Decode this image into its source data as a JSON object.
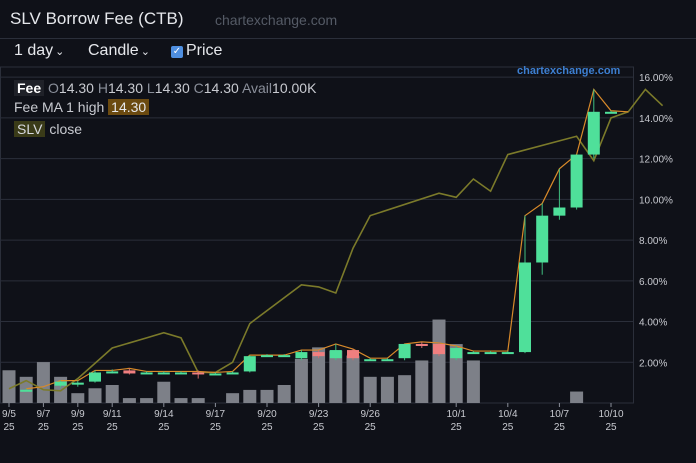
{
  "title": "SLV Borrow Fee (CTB)",
  "site": "chartexchange.com",
  "toolbar": {
    "period": "1 day",
    "chart_type": "Candle",
    "price_label": "Price",
    "price_checked": true
  },
  "watermark": "chartexchange.com",
  "legend": {
    "fee_badge": "Fee",
    "o_key": "O",
    "o_val": "14.30",
    "h_key": "H",
    "h_val": "14.30",
    "l_key": "L",
    "l_val": "14.30",
    "c_key": "C",
    "c_val": "14.30",
    "avail_key": "Avail",
    "avail_val": "10.00K",
    "ma_label": "Fee MA 1 high",
    "ma_val": "14.30",
    "slv_badge": "SLV",
    "slv_label": "close"
  },
  "colors": {
    "background": "#0f1118",
    "up": "#4fe09a",
    "down": "#f07f7f",
    "volume": "#7d8088",
    "price_line": "#7b7a2a",
    "ma_line": "#d98a2a",
    "grid": "#2b2f3a"
  },
  "chart_data": {
    "type": "candlestick",
    "ylim": [
      0,
      16.5
    ],
    "y_ticks": [
      "16.00%",
      "14.00%",
      "12.00%",
      "10.00%",
      "8.00%",
      "6.00%",
      "4.00%",
      "2.00%"
    ],
    "y_tick_values": [
      16,
      14,
      12,
      10,
      8,
      6,
      4,
      2
    ],
    "x_ticks": [
      {
        "index": 0,
        "top": "9/5",
        "bottom": "25"
      },
      {
        "index": 2,
        "top": "9/7",
        "bottom": "25"
      },
      {
        "index": 4,
        "top": "9/9",
        "bottom": "25"
      },
      {
        "index": 6,
        "top": "9/11",
        "bottom": "25"
      },
      {
        "index": 9,
        "top": "9/14",
        "bottom": "25"
      },
      {
        "index": 12,
        "top": "9/17",
        "bottom": "25"
      },
      {
        "index": 15,
        "top": "9/20",
        "bottom": "25"
      },
      {
        "index": 18,
        "top": "9/23",
        "bottom": "25"
      },
      {
        "index": 21,
        "top": "9/26",
        "bottom": "25"
      },
      {
        "index": 26,
        "top": "10/1",
        "bottom": "25"
      },
      {
        "index": 29,
        "top": "10/4",
        "bottom": "25"
      },
      {
        "index": 32,
        "top": "10/7",
        "bottom": "25"
      },
      {
        "index": 35,
        "top": "10/10",
        "bottom": "25"
      }
    ],
    "candles": [
      {
        "i": 1,
        "o": 0.65,
        "h": 0.7,
        "l": 0.6,
        "c": 0.65
      },
      {
        "i": 3,
        "o": 0.85,
        "h": 1.1,
        "l": 0.75,
        "c": 1.05
      },
      {
        "i": 4,
        "o": 0.9,
        "h": 1.1,
        "l": 0.8,
        "c": 1.0
      },
      {
        "i": 5,
        "o": 1.05,
        "h": 1.6,
        "l": 1.0,
        "c": 1.5
      },
      {
        "i": 6,
        "o": 1.5,
        "h": 1.65,
        "l": 1.45,
        "c": 1.55
      },
      {
        "i": 7,
        "o": 1.6,
        "h": 1.7,
        "l": 1.4,
        "c": 1.45
      },
      {
        "i": 8,
        "o": 1.5,
        "h": 1.55,
        "l": 1.45,
        "c": 1.5
      },
      {
        "i": 9,
        "o": 1.5,
        "h": 1.55,
        "l": 1.45,
        "c": 1.5
      },
      {
        "i": 10,
        "o": 1.5,
        "h": 1.55,
        "l": 1.45,
        "c": 1.5
      },
      {
        "i": 11,
        "o": 1.5,
        "h": 1.6,
        "l": 1.2,
        "c": 1.45
      },
      {
        "i": 12,
        "o": 1.45,
        "h": 1.5,
        "l": 1.4,
        "c": 1.45
      },
      {
        "i": 13,
        "o": 1.5,
        "h": 1.55,
        "l": 1.45,
        "c": 1.5
      },
      {
        "i": 14,
        "o": 1.55,
        "h": 2.35,
        "l": 1.5,
        "c": 2.3
      },
      {
        "i": 15,
        "o": 2.35,
        "h": 2.4,
        "l": 2.3,
        "c": 2.35
      },
      {
        "i": 16,
        "o": 2.35,
        "h": 2.4,
        "l": 2.3,
        "c": 2.35
      },
      {
        "i": 17,
        "o": 2.2,
        "h": 2.6,
        "l": 2.1,
        "c": 2.5
      },
      {
        "i": 18,
        "o": 2.5,
        "h": 2.6,
        "l": 2.2,
        "c": 2.3
      },
      {
        "i": 19,
        "o": 2.2,
        "h": 2.9,
        "l": 2.1,
        "c": 2.6
      },
      {
        "i": 20,
        "o": 2.6,
        "h": 2.65,
        "l": 2.1,
        "c": 2.2
      },
      {
        "i": 21,
        "o": 2.15,
        "h": 2.2,
        "l": 2.1,
        "c": 2.15
      },
      {
        "i": 22,
        "o": 2.15,
        "h": 2.2,
        "l": 2.1,
        "c": 2.15
      },
      {
        "i": 23,
        "o": 2.2,
        "h": 2.9,
        "l": 2.1,
        "c": 2.9
      },
      {
        "i": 24,
        "o": 2.9,
        "h": 3.0,
        "l": 2.7,
        "c": 2.8
      },
      {
        "i": 25,
        "o": 2.9,
        "h": 2.95,
        "l": 2.3,
        "c": 2.4
      },
      {
        "i": 26,
        "o": 2.2,
        "h": 2.8,
        "l": 2.1,
        "c": 2.7
      },
      {
        "i": 27,
        "o": 2.5,
        "h": 2.55,
        "l": 2.45,
        "c": 2.5
      },
      {
        "i": 28,
        "o": 2.5,
        "h": 2.55,
        "l": 2.45,
        "c": 2.5
      },
      {
        "i": 29,
        "o": 2.5,
        "h": 2.55,
        "l": 2.45,
        "c": 2.5
      },
      {
        "i": 30,
        "o": 2.5,
        "h": 9.2,
        "l": 2.45,
        "c": 6.9
      },
      {
        "i": 31,
        "o": 6.9,
        "h": 9.8,
        "l": 6.3,
        "c": 9.2
      },
      {
        "i": 32,
        "o": 9.2,
        "h": 11.5,
        "l": 9.0,
        "c": 9.6
      },
      {
        "i": 33,
        "o": 9.6,
        "h": 12.2,
        "l": 9.5,
        "c": 12.2
      },
      {
        "i": 34,
        "o": 12.2,
        "h": 15.4,
        "l": 12.0,
        "c": 14.3
      },
      {
        "i": 35,
        "o": 14.3,
        "h": 14.35,
        "l": 14.25,
        "c": 14.3
      }
    ],
    "volume": [
      {
        "i": 0,
        "v": 0.2
      },
      {
        "i": 1,
        "v": 0.16
      },
      {
        "i": 2,
        "v": 0.25
      },
      {
        "i": 3,
        "v": 0.16
      },
      {
        "i": 4,
        "v": 0.06
      },
      {
        "i": 5,
        "v": 0.09
      },
      {
        "i": 6,
        "v": 0.11
      },
      {
        "i": 7,
        "v": 0.03
      },
      {
        "i": 8,
        "v": 0.03
      },
      {
        "i": 9,
        "v": 0.13
      },
      {
        "i": 10,
        "v": 0.03
      },
      {
        "i": 11,
        "v": 0.03
      },
      {
        "i": 13,
        "v": 0.06
      },
      {
        "i": 14,
        "v": 0.08
      },
      {
        "i": 15,
        "v": 0.08
      },
      {
        "i": 16,
        "v": 0.11
      },
      {
        "i": 17,
        "v": 0.27
      },
      {
        "i": 18,
        "v": 0.34
      },
      {
        "i": 19,
        "v": 0.32
      },
      {
        "i": 20,
        "v": 0.29
      },
      {
        "i": 21,
        "v": 0.16
      },
      {
        "i": 22,
        "v": 0.16
      },
      {
        "i": 23,
        "v": 0.17
      },
      {
        "i": 24,
        "v": 0.26
      },
      {
        "i": 25,
        "v": 0.51
      },
      {
        "i": 26,
        "v": 0.36
      },
      {
        "i": 27,
        "v": 0.26
      },
      {
        "i": 33,
        "v": 0.07
      }
    ],
    "price_line": [
      {
        "i": 0,
        "v": 0.7
      },
      {
        "i": 1,
        "v": 1.1
      },
      {
        "i": 2,
        "v": 0.65
      },
      {
        "i": 3,
        "v": 0.6
      },
      {
        "i": 4,
        "v": 1.2
      },
      {
        "i": 6,
        "v": 2.7
      },
      {
        "i": 8,
        "v": 3.2
      },
      {
        "i": 9,
        "v": 3.45
      },
      {
        "i": 10,
        "v": 3.2
      },
      {
        "i": 11,
        "v": 1.5
      },
      {
        "i": 12,
        "v": 1.5
      },
      {
        "i": 13,
        "v": 2.0
      },
      {
        "i": 14,
        "v": 3.9
      },
      {
        "i": 17,
        "v": 5.8
      },
      {
        "i": 18,
        "v": 5.7
      },
      {
        "i": 19,
        "v": 5.4
      },
      {
        "i": 20,
        "v": 7.6
      },
      {
        "i": 21,
        "v": 9.2
      },
      {
        "i": 25,
        "v": 10.3
      },
      {
        "i": 26,
        "v": 10.1
      },
      {
        "i": 27,
        "v": 11.0
      },
      {
        "i": 28,
        "v": 10.4
      },
      {
        "i": 29,
        "v": 12.2
      },
      {
        "i": 33,
        "v": 13.1
      },
      {
        "i": 34,
        "v": 11.9
      },
      {
        "i": 35,
        "v": 14.0
      },
      {
        "i": 36,
        "v": 14.3
      },
      {
        "i": 37,
        "v": 15.4
      },
      {
        "i": 38,
        "v": 14.6
      }
    ],
    "ma_line": [
      {
        "i": 1,
        "v": 0.7
      },
      {
        "i": 2,
        "v": 0.8
      },
      {
        "i": 3,
        "v": 1.1
      },
      {
        "i": 4,
        "v": 1.1
      },
      {
        "i": 5,
        "v": 1.6
      },
      {
        "i": 6,
        "v": 1.6
      },
      {
        "i": 7,
        "v": 1.7
      },
      {
        "i": 8,
        "v": 1.55
      },
      {
        "i": 11,
        "v": 1.55
      },
      {
        "i": 12,
        "v": 1.5
      },
      {
        "i": 13,
        "v": 1.55
      },
      {
        "i": 14,
        "v": 2.35
      },
      {
        "i": 16,
        "v": 2.35
      },
      {
        "i": 17,
        "v": 2.6
      },
      {
        "i": 18,
        "v": 2.6
      },
      {
        "i": 19,
        "v": 2.9
      },
      {
        "i": 20,
        "v": 2.65
      },
      {
        "i": 21,
        "v": 2.2
      },
      {
        "i": 22,
        "v": 2.2
      },
      {
        "i": 23,
        "v": 2.9
      },
      {
        "i": 24,
        "v": 3.0
      },
      {
        "i": 25,
        "v": 2.95
      },
      {
        "i": 26,
        "v": 2.8
      },
      {
        "i": 27,
        "v": 2.55
      },
      {
        "i": 29,
        "v": 2.55
      },
      {
        "i": 30,
        "v": 9.2
      },
      {
        "i": 31,
        "v": 9.8
      },
      {
        "i": 32,
        "v": 11.5
      },
      {
        "i": 33,
        "v": 12.2
      },
      {
        "i": 34,
        "v": 15.4
      },
      {
        "i": 35,
        "v": 14.35
      },
      {
        "i": 36,
        "v": 14.3
      }
    ]
  }
}
